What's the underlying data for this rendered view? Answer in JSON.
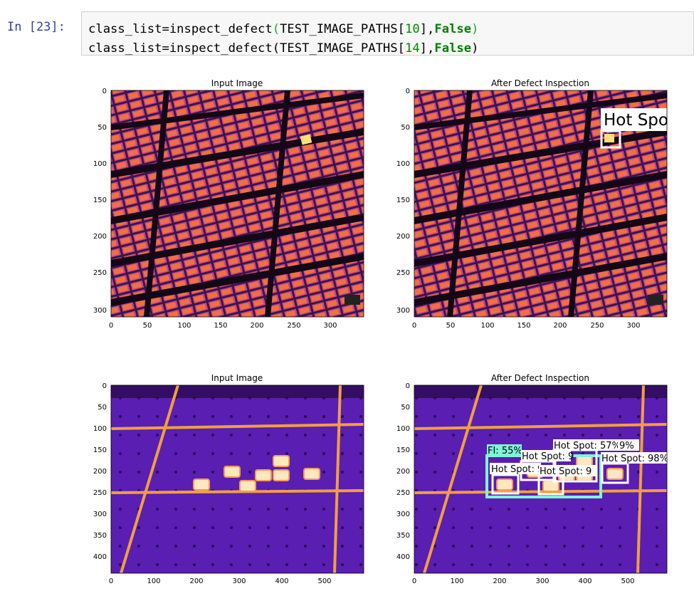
{
  "prompt": "In [23]:",
  "code": {
    "line1": {
      "pre": "class_list=inspect_defect",
      "open": "(",
      "arg": "TEST_IMAGE_PATHS[",
      "num": "10",
      "mid": "],",
      "kw": "False",
      "close": ")"
    },
    "line2": {
      "pre": "class_list=inspect_defect(",
      "arg": "TEST_IMAGE_PATHS[",
      "num": "14",
      "mid": "],",
      "kw": "False",
      "close": ")"
    }
  },
  "plots": [
    {
      "title": "Input Image",
      "yticks": [
        "0",
        "50",
        "100",
        "150",
        "200",
        "250",
        "300"
      ],
      "xticks": [
        "0",
        "50",
        "100",
        "150",
        "200",
        "250",
        "300"
      ]
    },
    {
      "title": "After Defect Inspection",
      "yticks": [
        "0",
        "50",
        "100",
        "150",
        "200",
        "250",
        "300"
      ],
      "xticks": [
        "0",
        "50",
        "100",
        "150",
        "200",
        "250",
        "300"
      ],
      "labels": [
        "Hot Spot"
      ]
    },
    {
      "title": "Input Image",
      "yticks": [
        "0",
        "50",
        "100",
        "150",
        "200",
        "250",
        "300",
        "350",
        "400"
      ],
      "xticks": [
        "0",
        "100",
        "200",
        "300",
        "400",
        "500"
      ]
    },
    {
      "title": "After Defect Inspection",
      "yticks": [
        "0",
        "50",
        "100",
        "150",
        "200",
        "250",
        "300",
        "350",
        "400"
      ],
      "xticks": [
        "0",
        "100",
        "200",
        "300",
        "400",
        "500"
      ],
      "labels": [
        "FI: 55%",
        "Hot Spot: 57%",
        "9%",
        "Hot Spot: 98%",
        "Hot Spot: 9",
        "Hot Spot: 9",
        "Hot Spot: 9"
      ]
    }
  ],
  "colors": {
    "panel_warm": "#b8407a",
    "panel_hot": "#f07a3c",
    "frame_dark": "#1a0a28",
    "purple_bg": "#5b1fb0",
    "busbar": "#f0a040",
    "hotspot": "#ffe6b0",
    "box_white": "#ffffff",
    "box_cyan": "#7ff5d8"
  }
}
